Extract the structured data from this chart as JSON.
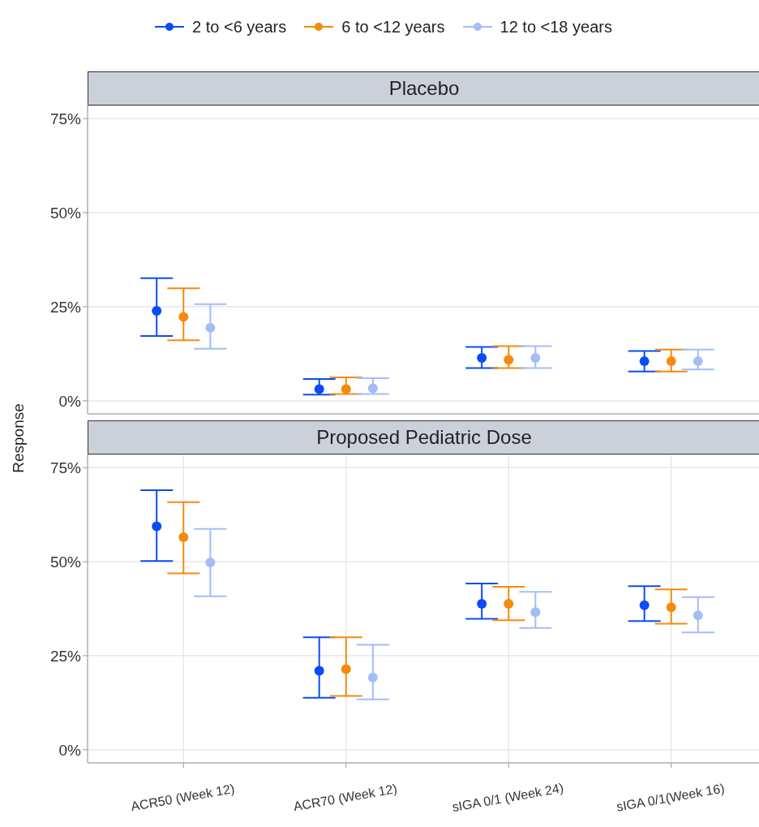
{
  "chart_data": [
    {
      "type": "scatter",
      "title": "Placebo",
      "ylabel": "Response",
      "categories": [
        null,
        null,
        null,
        null
      ],
      "ylim": [
        -3.5,
        78.5
      ],
      "yticks": [
        {
          "value": 0,
          "label": "0%"
        },
        {
          "value": 25,
          "label": "25%"
        },
        {
          "value": 50,
          "label": "50%"
        },
        {
          "value": 75,
          "label": "75%"
        }
      ],
      "grid": true,
      "legend": "top",
      "marker": "circle",
      "tick_labels": "y",
      "series": [
        {
          "name": "2 to <6 years",
          "color": "#0a4cf5",
          "values": [
            23.9,
            3.1,
            11.4,
            10.5
          ],
          "errors": [
            [
              17.2,
              32.6
            ],
            [
              1.6,
              5.8
            ],
            [
              8.7,
              14.3
            ],
            [
              7.8,
              13.2
            ]
          ]
        },
        {
          "name": "6 to <12 years",
          "color": "#f58a0c",
          "values": [
            22.3,
            3.1,
            10.9,
            10.5
          ],
          "errors": [
            [
              16.1,
              29.9
            ],
            [
              1.8,
              6.2
            ],
            [
              8.7,
              14.5
            ],
            [
              7.8,
              13.6
            ]
          ]
        },
        {
          "name": "12 to <18 years",
          "color": "#a3bdf7",
          "values": [
            19.4,
            3.3,
            11.4,
            10.5
          ],
          "errors": [
            [
              13.8,
              25.7
            ],
            [
              1.8,
              6.0
            ],
            [
              8.7,
              14.5
            ],
            [
              8.3,
              13.6
            ]
          ]
        }
      ]
    },
    {
      "type": "scatter",
      "title": "Proposed Pediatric Dose",
      "categories": [
        "ACR50 (Week 12)",
        "ACR70 (Week 12)",
        "sIGA 0/1 (Week 24)",
        "sIGA 0/1(Week 16)"
      ],
      "ylim": [
        -3.5,
        78.5
      ],
      "yticks": [
        {
          "value": 0,
          "label": "0%"
        },
        {
          "value": 25,
          "label": "25%"
        },
        {
          "value": 50,
          "label": "50%"
        },
        {
          "value": 75,
          "label": "75%"
        }
      ],
      "grid": true,
      "marker": "circle",
      "series": [
        {
          "color": "#0a4cf5",
          "values": [
            59.4,
            21.0,
            38.8,
            38.4
          ],
          "errors": [
            [
              50.2,
              69.0
            ],
            [
              13.8,
              29.9
            ],
            [
              34.8,
              44.2
            ],
            [
              34.2,
              43.5
            ]
          ]
        },
        {
          "color": "#f58a0c",
          "values": [
            56.5,
            21.4,
            38.8,
            37.9
          ],
          "errors": [
            [
              46.9,
              65.8
            ],
            [
              14.3,
              29.9
            ],
            [
              34.4,
              43.3
            ],
            [
              33.5,
              42.6
            ]
          ]
        },
        {
          "color": "#a3bdf7",
          "values": [
            49.8,
            19.2,
            36.6,
            35.7
          ],
          "errors": [
            [
              40.8,
              58.7
            ],
            [
              13.4,
              27.9
            ],
            [
              32.4,
              42.0
            ],
            [
              31.2,
              40.6
            ]
          ]
        }
      ]
    }
  ]
}
